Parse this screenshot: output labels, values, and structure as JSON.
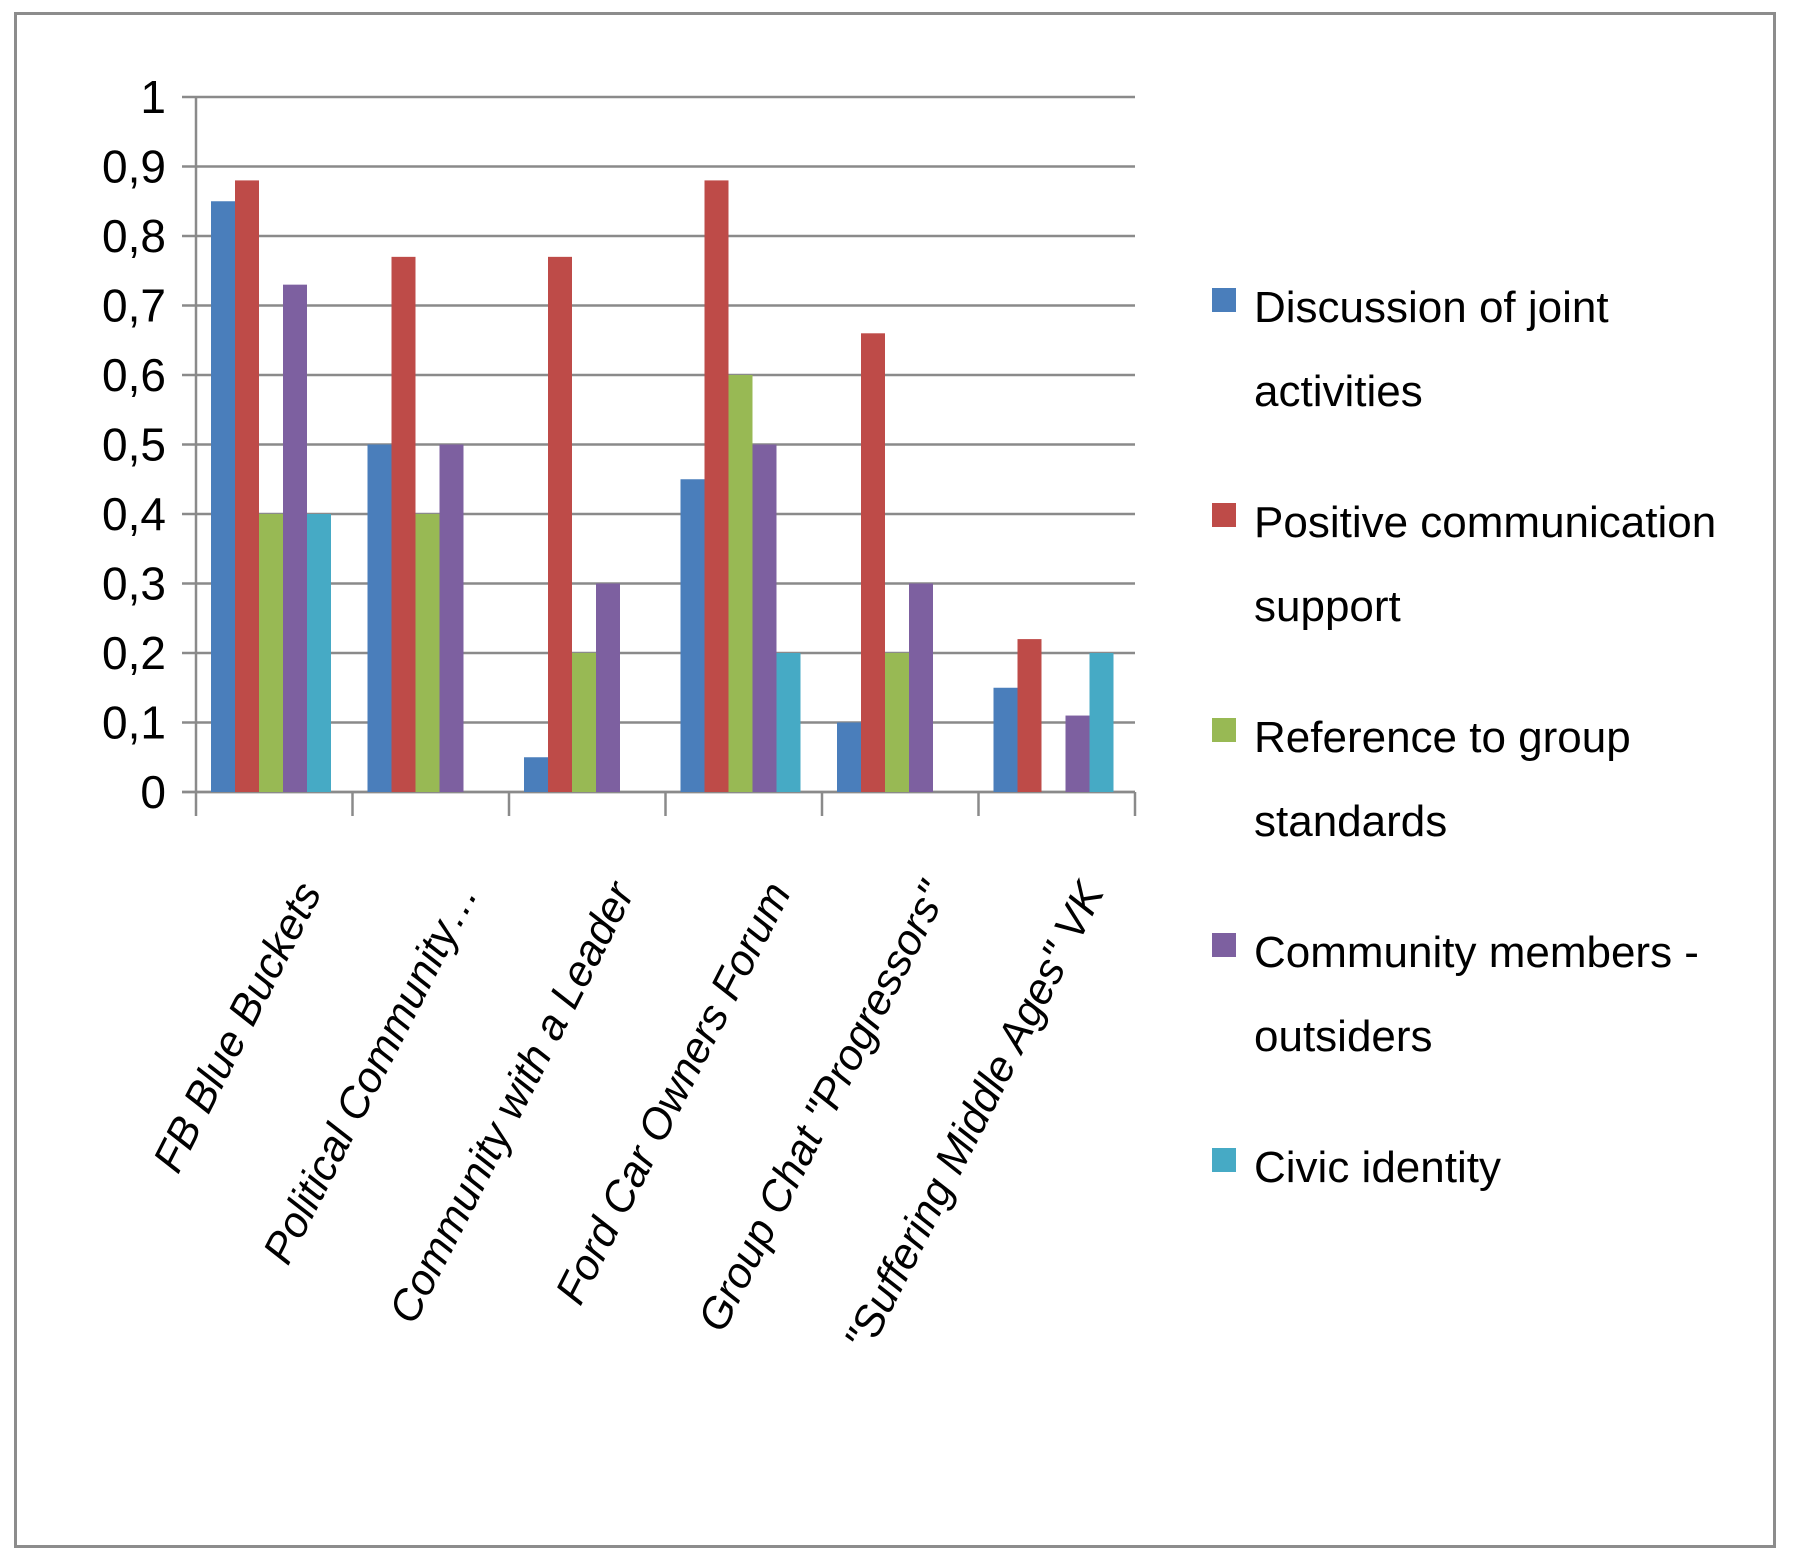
{
  "chart_data": {
    "type": "bar",
    "title": "",
    "xlabel": "",
    "ylabel": "",
    "ylim": [
      0,
      1
    ],
    "yticks": [
      "0",
      "0,1",
      "0,2",
      "0,3",
      "0,4",
      "0,5",
      "0,6",
      "0,7",
      "0,8",
      "0,9",
      "1"
    ],
    "grid": true,
    "legend_position": "right",
    "categories": [
      "FB Blue Buckets",
      "Political Community…",
      "Community with a Leader",
      "Ford Car Owners Forum",
      "Group Chat \"Progressors\"",
      "\"Suffering Middle Ages\" VK"
    ],
    "series": [
      {
        "name": "Discussion of joint activities",
        "legend_lines": [
          "Discussion of joint",
          "activities"
        ],
        "color": "#4a7ebb",
        "values": [
          0.85,
          0.5,
          0.05,
          0.45,
          0.1,
          0.15
        ]
      },
      {
        "name": "Positive communication support",
        "legend_lines": [
          "Positive communication",
          "support"
        ],
        "color": "#be4b48",
        "values": [
          0.88,
          0.77,
          0.77,
          0.88,
          0.66,
          0.22
        ]
      },
      {
        "name": "Reference to group standards",
        "legend_lines": [
          "Reference to group",
          "standards"
        ],
        "color": "#98b954",
        "values": [
          0.4,
          0.4,
          0.2,
          0.6,
          0.2,
          0
        ]
      },
      {
        "name": "Community members - outsiders",
        "legend_lines": [
          "Community members -",
          "outsiders"
        ],
        "color": "#7d60a0",
        "values": [
          0.73,
          0.5,
          0.3,
          0.5,
          0.3,
          0.11
        ]
      },
      {
        "name": "Civic identity",
        "legend_lines": [
          "Civic identity"
        ],
        "color": "#46aac5",
        "values": [
          0.4,
          0,
          0,
          0.2,
          0,
          0.2
        ]
      }
    ]
  }
}
